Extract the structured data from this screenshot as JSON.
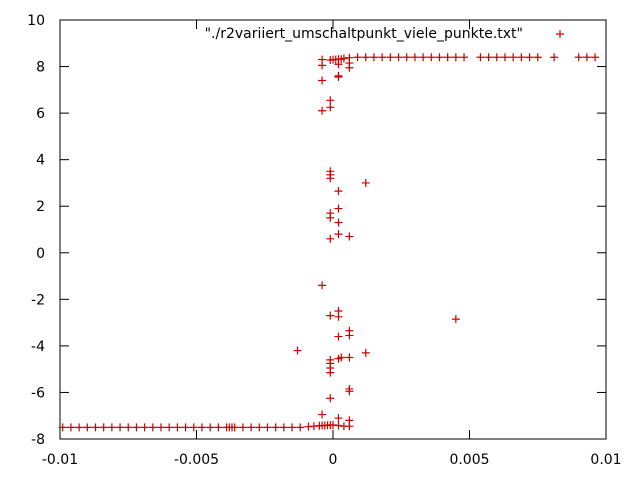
{
  "chart_data": {
    "type": "scatter",
    "title": "",
    "xlabel": "",
    "ylabel": "",
    "xlim": [
      -0.01,
      0.01
    ],
    "ylim": [
      -8,
      10
    ],
    "grid": false,
    "legend_position": "top-right",
    "x_ticks": [
      {
        "value": -0.01,
        "label": "-0.01"
      },
      {
        "value": -0.005,
        "label": "-0.005"
      },
      {
        "value": 0,
        "label": "0"
      },
      {
        "value": 0.005,
        "label": "0.005"
      },
      {
        "value": 0.01,
        "label": "0.01"
      }
    ],
    "y_ticks": [
      {
        "value": -8,
        "label": "-8"
      },
      {
        "value": -6,
        "label": "-6"
      },
      {
        "value": -4,
        "label": "-4"
      },
      {
        "value": -2,
        "label": "-2"
      },
      {
        "value": 0,
        "label": "0"
      },
      {
        "value": 2,
        "label": "2"
      },
      {
        "value": 4,
        "label": "4"
      },
      {
        "value": 6,
        "label": "6"
      },
      {
        "value": 8,
        "label": "8"
      },
      {
        "value": 10,
        "label": "10"
      }
    ],
    "series": [
      {
        "name": "\"./r2variiert_umschaltpunkt_viele_punkte.txt\"",
        "color": "#cc0000",
        "marker": "plus",
        "points": [
          [
            -0.0099,
            -7.5
          ],
          [
            -0.0096,
            -7.5
          ],
          [
            -0.0093,
            -7.5
          ],
          [
            -0.009,
            -7.5
          ],
          [
            -0.0087,
            -7.5
          ],
          [
            -0.0084,
            -7.5
          ],
          [
            -0.0081,
            -7.5
          ],
          [
            -0.0078,
            -7.5
          ],
          [
            -0.0075,
            -7.5
          ],
          [
            -0.0072,
            -7.5
          ],
          [
            -0.0069,
            -7.5
          ],
          [
            -0.0066,
            -7.5
          ],
          [
            -0.0063,
            -7.5
          ],
          [
            -0.006,
            -7.5
          ],
          [
            -0.0057,
            -7.5
          ],
          [
            -0.0054,
            -7.5
          ],
          [
            -0.0051,
            -7.5
          ],
          [
            -0.0048,
            -7.5
          ],
          [
            -0.0045,
            -7.5
          ],
          [
            -0.0042,
            -7.5
          ],
          [
            -0.0039,
            -7.5
          ],
          [
            -0.0038,
            -7.5
          ],
          [
            -0.0037,
            -7.5
          ],
          [
            -0.0036,
            -7.5
          ],
          [
            -0.0033,
            -7.5
          ],
          [
            -0.003,
            -7.5
          ],
          [
            -0.0027,
            -7.5
          ],
          [
            -0.0024,
            -7.5
          ],
          [
            -0.0021,
            -7.5
          ],
          [
            -0.0018,
            -7.5
          ],
          [
            -0.0015,
            -7.5
          ],
          [
            -0.0012,
            -7.5
          ],
          [
            -0.0009,
            -7.47
          ],
          [
            -0.0007,
            -7.45
          ],
          [
            -0.0005,
            -7.43
          ],
          [
            -0.0004,
            -7.42
          ],
          [
            -0.0003,
            -7.42
          ],
          [
            -0.0002,
            -7.41
          ],
          [
            -0.0001,
            -7.4
          ],
          [
            0.0,
            -7.4
          ],
          [
            0.0002,
            -7.42
          ],
          [
            0.0004,
            -7.45
          ],
          [
            0.0006,
            -7.45
          ],
          [
            -0.0004,
            -6.95
          ],
          [
            0.0002,
            -7.1
          ],
          [
            0.0006,
            -7.2
          ],
          [
            -0.0001,
            -6.25
          ],
          [
            0.0006,
            -5.85
          ],
          [
            0.0006,
            -5.95
          ],
          [
            -0.0001,
            -5.15
          ],
          [
            -0.0001,
            -4.95
          ],
          [
            -0.0001,
            -4.75
          ],
          [
            -0.0001,
            -4.6
          ],
          [
            0.0002,
            -4.55
          ],
          [
            0.0003,
            -4.5
          ],
          [
            0.0006,
            -4.5
          ],
          [
            0.0012,
            -4.3
          ],
          [
            -0.0013,
            -4.2
          ],
          [
            0.0002,
            -3.6
          ],
          [
            0.0006,
            -3.55
          ],
          [
            0.0006,
            -3.35
          ],
          [
            0.0002,
            -2.75
          ],
          [
            0.0002,
            -2.5
          ],
          [
            -0.0001,
            -2.7
          ],
          [
            0.0045,
            -2.85
          ],
          [
            -0.0004,
            -1.4
          ],
          [
            -0.0001,
            0.6
          ],
          [
            0.0002,
            0.8
          ],
          [
            0.0006,
            0.7
          ],
          [
            0.0002,
            1.3
          ],
          [
            -0.0001,
            1.5
          ],
          [
            -0.0001,
            1.7
          ],
          [
            0.0002,
            1.9
          ],
          [
            0.0002,
            2.65
          ],
          [
            0.0012,
            3.0
          ],
          [
            -0.0001,
            3.2
          ],
          [
            -0.0001,
            3.35
          ],
          [
            -0.0001,
            3.5
          ],
          [
            -0.0001,
            6.25
          ],
          [
            -0.0001,
            6.55
          ],
          [
            -0.0004,
            6.1
          ],
          [
            -0.0004,
            7.4
          ],
          [
            0.0002,
            7.55
          ],
          [
            0.0002,
            7.6
          ],
          [
            0.0006,
            7.95
          ],
          [
            -0.0004,
            8.05
          ],
          [
            0.0002,
            8.1
          ],
          [
            0.0006,
            8.15
          ],
          [
            -0.0004,
            8.3
          ],
          [
            -0.0001,
            8.28
          ],
          [
            0.0,
            8.3
          ],
          [
            0.0001,
            8.3
          ],
          [
            0.0002,
            8.32
          ],
          [
            0.0003,
            8.32
          ],
          [
            0.0004,
            8.35
          ],
          [
            0.0006,
            8.38
          ],
          [
            0.0009,
            8.4
          ],
          [
            0.0012,
            8.4
          ],
          [
            0.0015,
            8.4
          ],
          [
            0.0018,
            8.4
          ],
          [
            0.0021,
            8.4
          ],
          [
            0.0024,
            8.4
          ],
          [
            0.0027,
            8.4
          ],
          [
            0.003,
            8.4
          ],
          [
            0.0033,
            8.4
          ],
          [
            0.0036,
            8.4
          ],
          [
            0.0039,
            8.4
          ],
          [
            0.0042,
            8.4
          ],
          [
            0.0045,
            8.4
          ],
          [
            0.0048,
            8.4
          ],
          [
            0.0054,
            8.4
          ],
          [
            0.0057,
            8.4
          ],
          [
            0.006,
            8.4
          ],
          [
            0.0063,
            8.4
          ],
          [
            0.0066,
            8.4
          ],
          [
            0.0069,
            8.4
          ],
          [
            0.0072,
            8.4
          ],
          [
            0.0075,
            8.4
          ],
          [
            0.0081,
            8.4
          ],
          [
            0.009,
            8.4
          ],
          [
            0.0093,
            8.4
          ],
          [
            0.0096,
            8.4
          ]
        ]
      }
    ]
  }
}
